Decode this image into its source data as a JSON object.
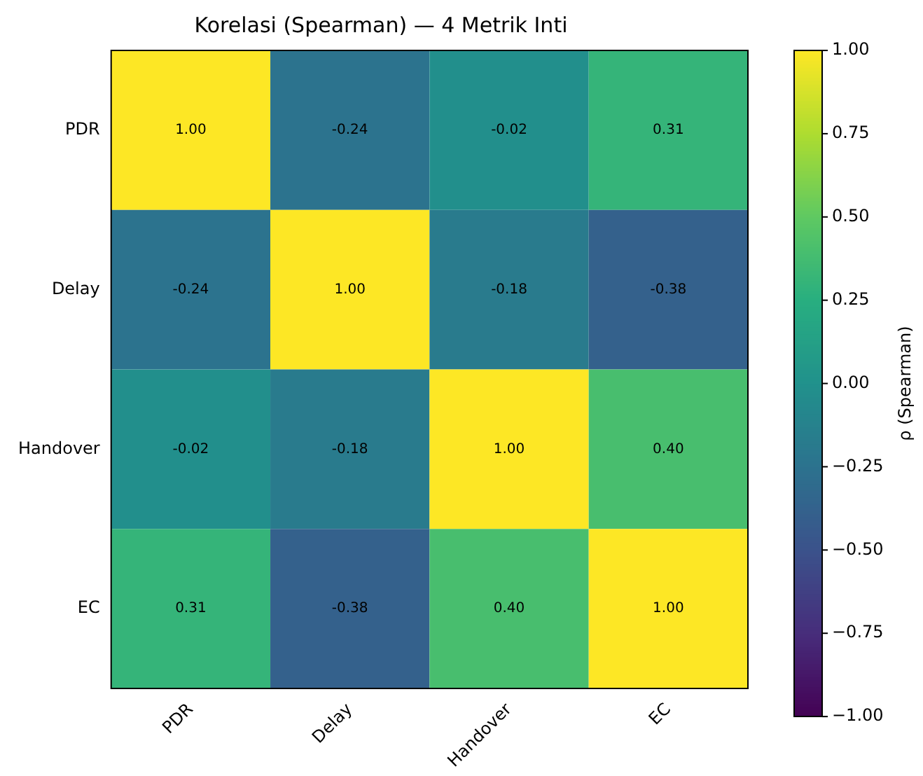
{
  "chart_data": {
    "type": "heatmap",
    "title": "Korelasi (Spearman) — 4 Metrik Inti",
    "categories": [
      "PDR",
      "Delay",
      "Handover",
      "EC"
    ],
    "y_categories": [
      "PDR",
      "Delay",
      "Handover",
      "EC"
    ],
    "cells": [
      [
        1.0,
        -0.24,
        -0.02,
        0.31
      ],
      [
        -0.24,
        1.0,
        -0.18,
        -0.38
      ],
      [
        -0.02,
        -0.18,
        1.0,
        0.4
      ],
      [
        0.31,
        -0.38,
        0.4,
        1.0
      ]
    ],
    "cell_labels": [
      [
        "1.00",
        "-0.24",
        "-0.02",
        "0.31"
      ],
      [
        "-0.24",
        "1.00",
        "-0.18",
        "-0.38"
      ],
      [
        "-0.02",
        "-0.18",
        "1.00",
        "0.40"
      ],
      [
        "0.31",
        "-0.38",
        "0.40",
        "1.00"
      ]
    ],
    "clabel": "ρ (Spearman)",
    "clim": [
      -1,
      1
    ],
    "cticks": [
      {
        "value": -1,
        "label": "−1.00"
      },
      {
        "value": -0.75,
        "label": "−0.75"
      },
      {
        "value": -0.5,
        "label": "−0.50"
      },
      {
        "value": -0.25,
        "label": "−0.25"
      },
      {
        "value": 0,
        "label": "0.00"
      },
      {
        "value": 0.25,
        "label": "0.25"
      },
      {
        "value": 0.5,
        "label": "0.50"
      },
      {
        "value": 0.75,
        "label": "0.75"
      },
      {
        "value": 1,
        "label": "1.00"
      }
    ]
  }
}
